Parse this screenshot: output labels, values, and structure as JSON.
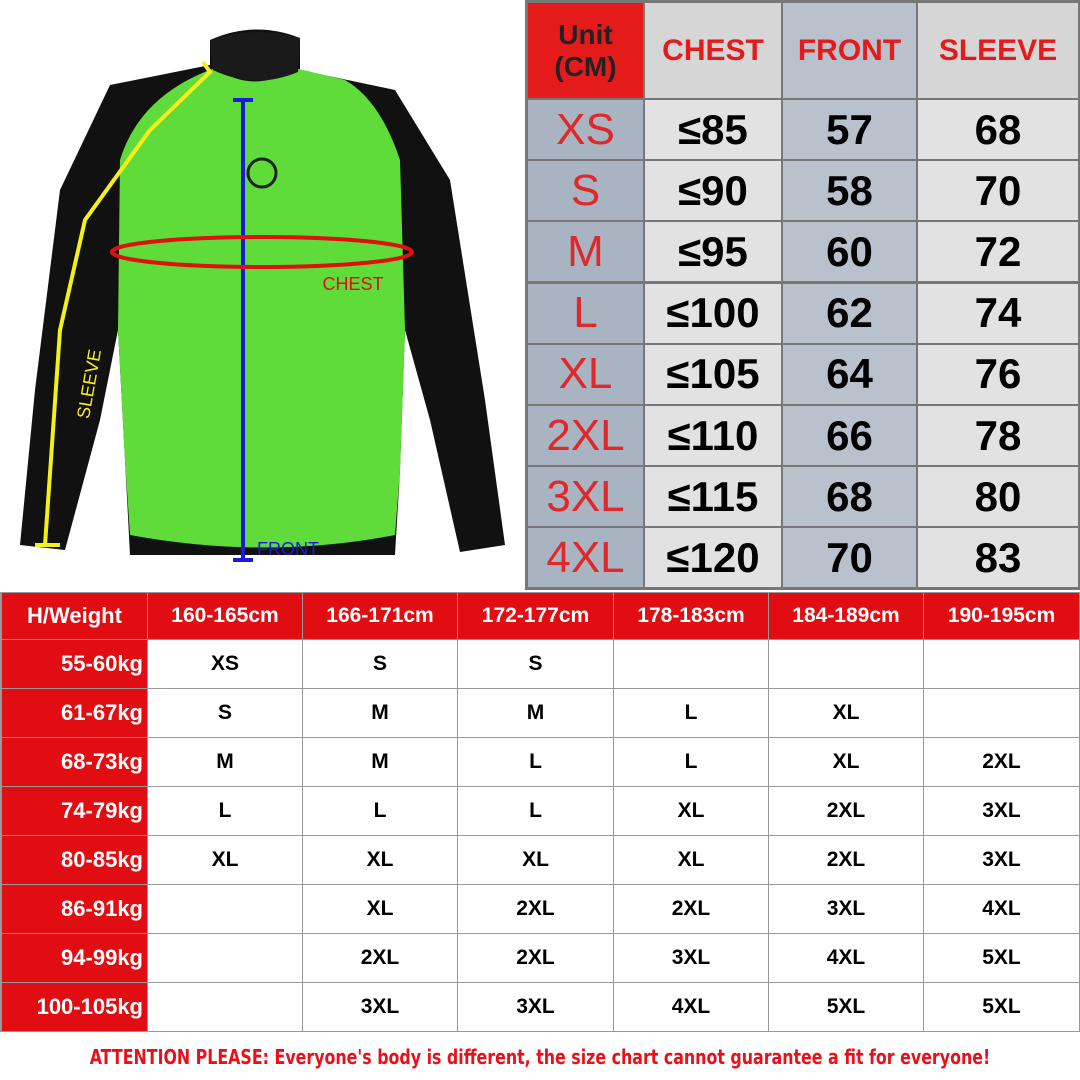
{
  "diagram": {
    "sleeve_label": "SLEEVE",
    "chest_label": "CHEST",
    "front_label": "FRONT"
  },
  "top_table": {
    "unit_label": [
      "Unit",
      "(CM)"
    ],
    "columns": [
      "CHEST",
      "FRONT",
      "SLEEVE"
    ],
    "rows": [
      [
        "XS",
        "≤85",
        57,
        68
      ],
      [
        "S",
        "≤90",
        58,
        70
      ],
      [
        "M",
        "≤95",
        60,
        72
      ],
      [
        "L",
        "≤100",
        62,
        74
      ],
      [
        "XL",
        "≤105",
        64,
        76
      ],
      [
        "2XL",
        "≤110",
        66,
        78
      ],
      [
        "3XL",
        "≤115",
        68,
        80
      ],
      [
        "4XL",
        "≤120",
        70,
        83
      ]
    ]
  },
  "bottom_table": {
    "corner": "H/Weight",
    "columns": [
      "160-165cm",
      "166-171cm",
      "172-177cm",
      "178-183cm",
      "184-189cm",
      "190-195cm"
    ],
    "rows": [
      [
        "55-60kg",
        "XS",
        "S",
        "S",
        null,
        null,
        null
      ],
      [
        "61-67kg",
        "S",
        "M",
        "M",
        "L",
        "XL",
        null
      ],
      [
        "68-73kg",
        "M",
        "M",
        "L",
        "L",
        "XL",
        "2XL"
      ],
      [
        "74-79kg",
        "L",
        "L",
        "L",
        "XL",
        "2XL",
        "3XL"
      ],
      [
        "80-85kg",
        "XL",
        "XL",
        "XL",
        "XL",
        "2XL",
        "3XL"
      ],
      [
        "86-91kg",
        null,
        "XL",
        "2XL",
        "2XL",
        "3XL",
        "4XL"
      ],
      [
        "94-99kg",
        null,
        "2XL",
        "2XL",
        "3XL",
        "4XL",
        "5XL"
      ],
      [
        "100-105kg",
        null,
        "3XL",
        "3XL",
        "4XL",
        "5XL",
        "5XL"
      ]
    ]
  },
  "note": "ATTENTION PLEASE: Everyone's body is different, the size chart cannot guarantee a fit for everyone!"
}
